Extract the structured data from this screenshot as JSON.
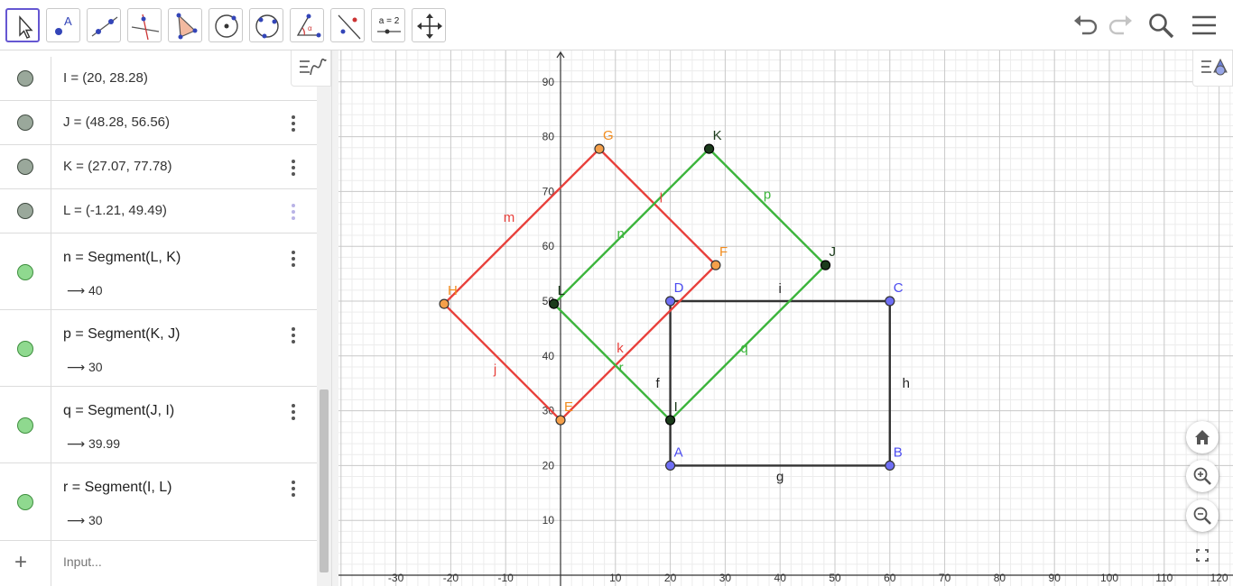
{
  "toolbar": {
    "tools": [
      {
        "id": "move",
        "icon": "arrow-cursor-icon",
        "active": true
      },
      {
        "id": "point",
        "icon": "point-icon",
        "label": "A"
      },
      {
        "id": "line",
        "icon": "line-icon"
      },
      {
        "id": "perpendicular",
        "icon": "perpendicular-line-icon"
      },
      {
        "id": "polygon",
        "icon": "polygon-icon"
      },
      {
        "id": "circle",
        "icon": "circle-center-icon"
      },
      {
        "id": "circle3",
        "icon": "circle-three-points-icon"
      },
      {
        "id": "angle",
        "icon": "angle-icon"
      },
      {
        "id": "reflect",
        "icon": "reflect-line-icon"
      },
      {
        "id": "slider",
        "icon": "slider-icon",
        "label": "a = 2"
      },
      {
        "id": "movegraphics",
        "icon": "move-graphics-icon"
      }
    ],
    "right": [
      "undo-icon",
      "redo-icon",
      "search-icon",
      "menu-icon"
    ]
  },
  "algebra": {
    "rows": [
      {
        "name": "I",
        "definition": "I = (20, 28.28)",
        "kind": "point"
      },
      {
        "name": "J",
        "definition": "J = (48.28, 56.56)",
        "kind": "point"
      },
      {
        "name": "K",
        "definition": "K = (27.07, 77.78)",
        "kind": "point"
      },
      {
        "name": "L",
        "definition": "L = (-1.21, 49.49)",
        "kind": "point"
      },
      {
        "name": "n",
        "definition": "n  =  Segment(L, K)",
        "value": "40",
        "kind": "segment"
      },
      {
        "name": "p",
        "definition": "p  =  Segment(K, J)",
        "value": "30",
        "kind": "segment"
      },
      {
        "name": "q",
        "definition": "q  =  Segment(J, I)",
        "value": "39.99",
        "kind": "segment"
      },
      {
        "name": "r",
        "definition": "r  =  Segment(I, L)",
        "value": "30",
        "kind": "segment"
      }
    ],
    "input_placeholder": "Input...",
    "arrow": "⟶"
  },
  "graph": {
    "x_ticks": [
      -30,
      -20,
      -10,
      10,
      20,
      30,
      40,
      50,
      60,
      70,
      80,
      90,
      100,
      110,
      120
    ],
    "y_ticks": [
      10,
      20,
      30,
      40,
      50,
      60,
      70,
      80,
      90
    ],
    "colors": {
      "red": "#e8413c",
      "green": "#3bb43b",
      "black": "#333333",
      "orange": "#f28c1e",
      "blue": "#4c4cf0",
      "darkgreen": "#1b3b1b"
    },
    "points": [
      {
        "label": "A",
        "x": 20,
        "y": 20,
        "color": "blue"
      },
      {
        "label": "B",
        "x": 60,
        "y": 20,
        "color": "blue"
      },
      {
        "label": "C",
        "x": 60,
        "y": 50,
        "color": "blue"
      },
      {
        "label": "D",
        "x": 20,
        "y": 50,
        "color": "blue"
      },
      {
        "label": "E",
        "x": 0,
        "y": 28.28,
        "color": "orange"
      },
      {
        "label": "F",
        "x": 28.28,
        "y": 56.56,
        "color": "orange"
      },
      {
        "label": "G",
        "x": 7.07,
        "y": 77.78,
        "color": "orange"
      },
      {
        "label": "H",
        "x": -21.21,
        "y": 49.49,
        "color": "orange"
      },
      {
        "label": "I",
        "x": 20,
        "y": 28.28,
        "color": "darkgreen"
      },
      {
        "label": "J",
        "x": 48.28,
        "y": 56.56,
        "color": "darkgreen"
      },
      {
        "label": "K",
        "x": 27.07,
        "y": 77.78,
        "color": "darkgreen"
      },
      {
        "label": "L",
        "x": -1.21,
        "y": 49.49,
        "color": "darkgreen"
      }
    ],
    "segments": [
      {
        "label": "g",
        "from": "A",
        "to": "B",
        "color": "black"
      },
      {
        "label": "h",
        "from": "B",
        "to": "C",
        "color": "black"
      },
      {
        "label": "i",
        "from": "C",
        "to": "D",
        "color": "black"
      },
      {
        "label": "f",
        "from": "D",
        "to": "A",
        "color": "black"
      },
      {
        "label": "k",
        "from": "E",
        "to": "F",
        "color": "red"
      },
      {
        "label": "l",
        "from": "F",
        "to": "G",
        "color": "red"
      },
      {
        "label": "m",
        "from": "G",
        "to": "H",
        "color": "red"
      },
      {
        "label": "j",
        "from": "H",
        "to": "E",
        "color": "red"
      },
      {
        "label": "n",
        "from": "L",
        "to": "K",
        "color": "green"
      },
      {
        "label": "p",
        "from": "K",
        "to": "J",
        "color": "green"
      },
      {
        "label": "q",
        "from": "J",
        "to": "I",
        "color": "green"
      },
      {
        "label": "r",
        "from": "I",
        "to": "L",
        "color": "green"
      }
    ]
  },
  "graphics_controls": [
    "home-icon",
    "zoom-in-icon",
    "zoom-out-icon",
    "fullscreen-icon"
  ]
}
